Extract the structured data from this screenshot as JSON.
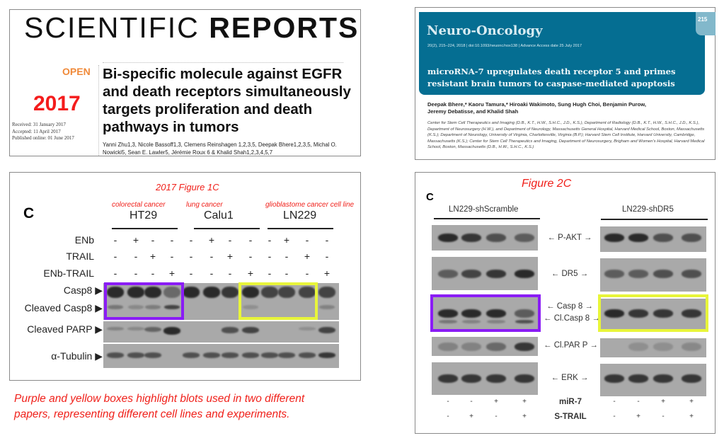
{
  "sci_reports": {
    "logo_light": "SCIENTIFIC ",
    "logo_bold": "REPORTS",
    "open": "OPEN",
    "year": "2017",
    "dates": [
      "Received: 31 January 2017",
      "Accepted: 11 April 2017",
      "Published online: 01 June 2017"
    ],
    "title": "Bi-specific molecule against EGFR and death receptors simultaneously targets proliferation and death pathways in tumors",
    "authors": "Yanni Zhu1,3, Nicole Bassoff1,3, Clemens Reinshagen 1,2,3,5, Deepak Bhere1,2,3,5, Michal O. Nowicki5, Sean E. Lawler5, Jérémie Roux 6 & Khalid Shah1,2,3,4,5,7"
  },
  "neuro_onc": {
    "journal": "Neuro-Oncology",
    "page": "215",
    "meta": "20(2), 215–224, 2018 | doi:10.1093/neuonc/nox138 | Advance Access date 25 July 2017",
    "title_lines": [
      "microRNA-7 upregulates death receptor 5 and primes",
      "resistant brain tumors to caspase-mediated apoptosis"
    ],
    "authors_lines": [
      "Deepak Bhere,* Kaoru Tamura,* Hiroaki Wakimoto, Sung Hugh Choi, Benjamin Purow,",
      "Jeremy Debatisse, and Khalid Shah"
    ],
    "affiliations": "Center for Stem Cell Therapeutics and Imaging (D.B., K.T., H.W., S.H.C., J.D., K.S.), Department of Radiology (D.B., K.T., H.W., S.H.C., J.D., K.S.), Department of Neurosurgery (H.W.), and Department of Neurology, Massachusetts General Hospital, Harvard Medical School, Boston, Massachusetts (K.S.); Department of Neurology, University of Virginia, Charlottesville, Virginia (B.P.); Harvard Stem Cell Institute, Harvard University, Cambridge, Massachusetts (K.S.); Center for Stem Cell Therapeutics and Imaging, Department of Neurosurgery, Brigham and Women's Hospital, Harvard Medical School, Boston, Massachusetts (D.B., H.W., S.H.C., K.S.)"
  },
  "fig1c": {
    "heading": "2017 Figure 1C",
    "panel_letter": "C",
    "groups": [
      {
        "note": "colorectal cancer",
        "name": "HT29"
      },
      {
        "note": "lung cancer",
        "name": "Calu1"
      },
      {
        "note": "glioblastome cancer cell line",
        "name": "LN229"
      }
    ],
    "treatments": [
      {
        "label": "ENb",
        "signs": [
          "-",
          "+",
          "-",
          "-",
          "-",
          "+",
          "-",
          "-",
          "-",
          "+",
          "-",
          "-"
        ]
      },
      {
        "label": "TRAIL",
        "signs": [
          "-",
          "-",
          "+",
          "-",
          "-",
          "-",
          "+",
          "-",
          "-",
          "-",
          "+",
          "-"
        ]
      },
      {
        "label": "ENb-TRAIL",
        "signs": [
          "-",
          "-",
          "-",
          "+",
          "-",
          "-",
          "-",
          "+",
          "-",
          "-",
          "-",
          "+"
        ]
      }
    ],
    "blots": [
      "Casp8 ▶",
      "Cleaved Casp8 ▶",
      "Cleaved PARP ▶",
      "α-Tubulin ▶"
    ]
  },
  "fig2c": {
    "heading": "Figure 2C",
    "panel_letter": "C",
    "groups": [
      "LN229-shScramble",
      "LN229-shDR5"
    ],
    "blots": [
      "P-AKT",
      "DR5",
      "Casp 8",
      "Cl.Casp 8",
      "Cl.PAR P",
      "ERK"
    ],
    "treatments": [
      {
        "label": "miR-7",
        "signs": [
          "-",
          "-",
          "+",
          "+",
          "-",
          "-",
          "+",
          "+"
        ]
      },
      {
        "label": "S-TRAIL",
        "signs": [
          "-",
          "+",
          "-",
          "+",
          "-",
          "+",
          "-",
          "+"
        ]
      }
    ]
  },
  "caption": [
    "Purple and yellow boxes highlight blots used in two different",
    "papers, representing different cell lines and experiments."
  ],
  "colors": {
    "highlight_purple": "#8a1cf5",
    "highlight_yellow": "#e8f53a",
    "annotation_red": "#f0201a",
    "journal_teal": "#056e92"
  }
}
